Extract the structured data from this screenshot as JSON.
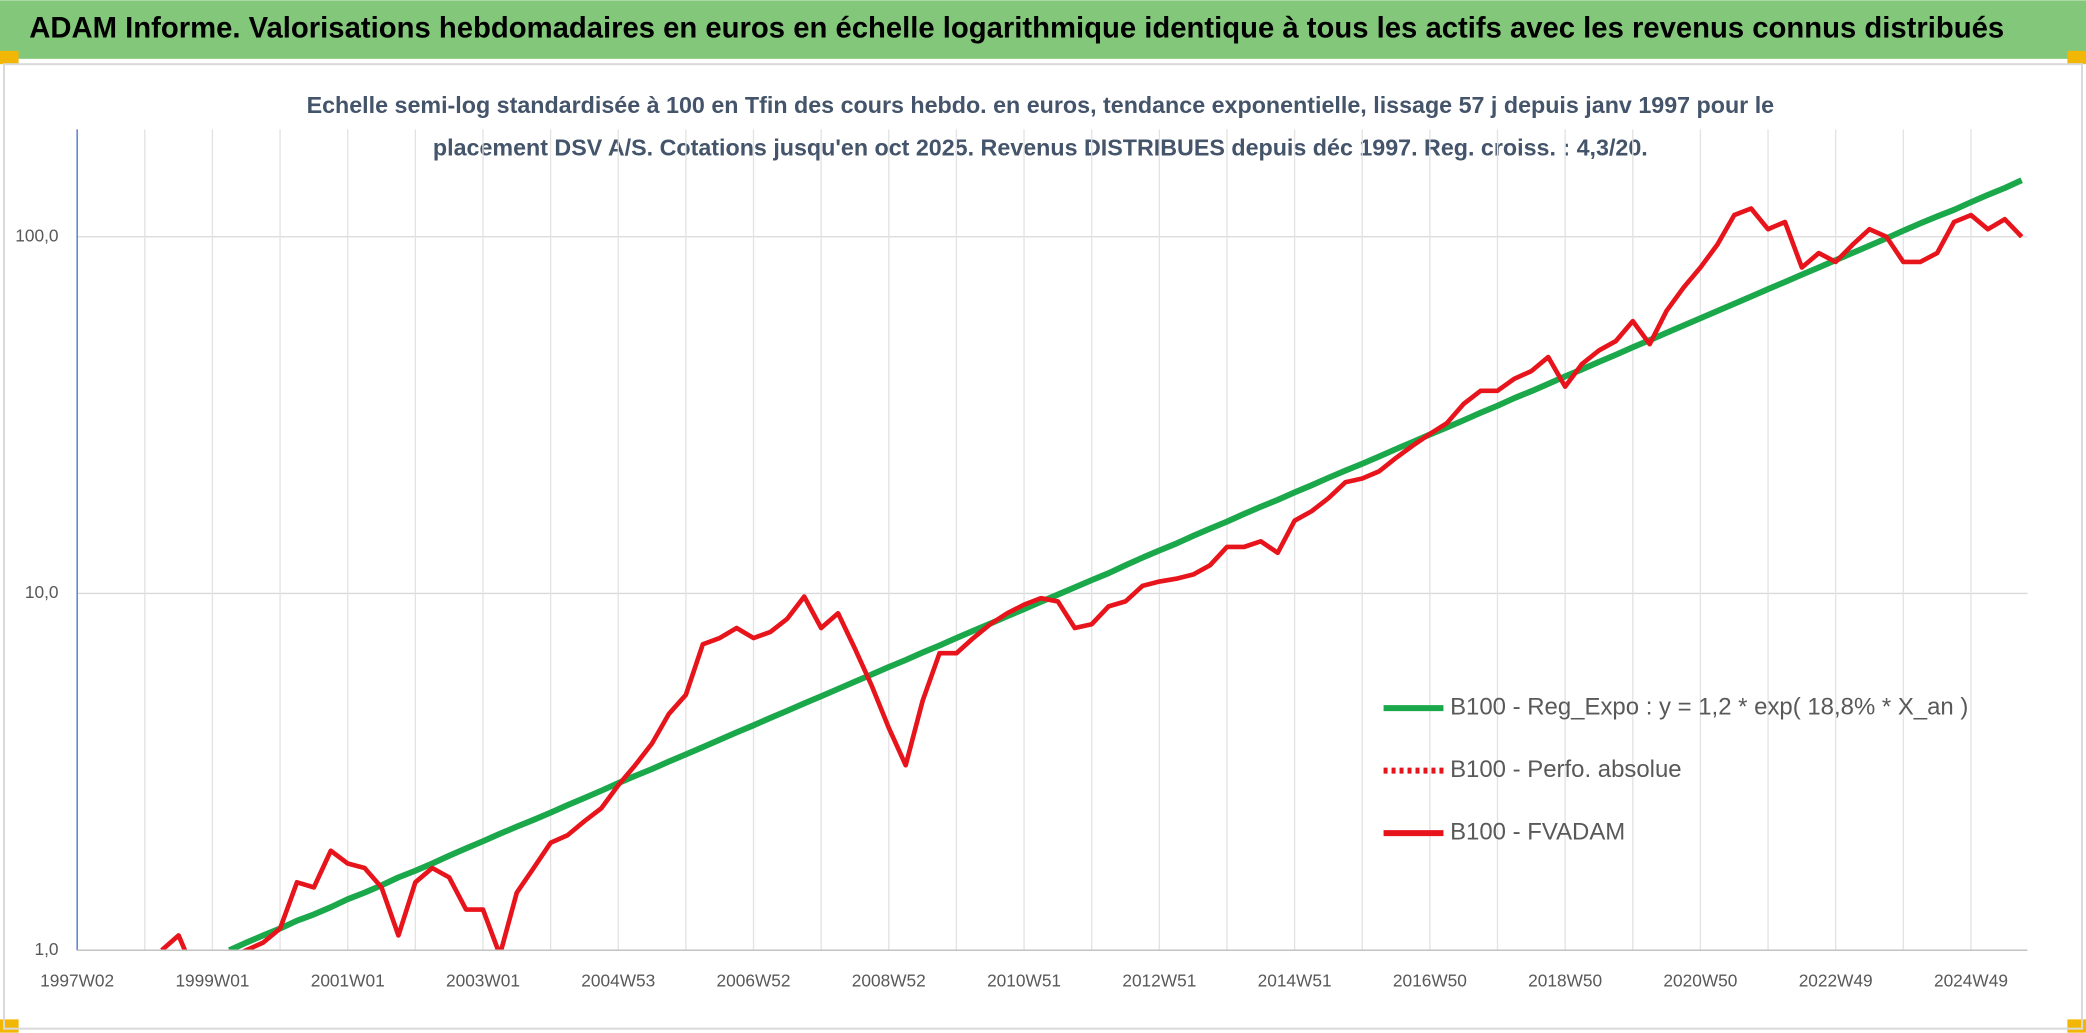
{
  "header": {
    "title": "ADAM Informe. Valorisations hebdomadaires en euros en échelle logarithmique identique à tous les actifs avec les revenus connus distribués"
  },
  "chart_data": {
    "type": "line",
    "subtitle": [
      "Echelle semi-log standardisée à 100 en Tfin des cours hebdo. en euros, tendance exponentielle, lissage 57 j depuis janv 1997 pour le",
      "placement DSV A/S. Cotations jusqu'en oct 2025. Revenus DISTRIBUES depuis déc 1997. Reg. croiss. : 4,3/20."
    ],
    "log_scale": true,
    "grid": true,
    "ylim": [
      1,
      200
    ],
    "yticks": [
      {
        "value": 1,
        "label": "1,0"
      },
      {
        "value": 10,
        "label": "10,0"
      },
      {
        "value": 100,
        "label": "100,0"
      }
    ],
    "categories": [
      "1997W02",
      null,
      null,
      null,
      null,
      null,
      null,
      null,
      "1999W01",
      null,
      null,
      null,
      null,
      null,
      null,
      null,
      "2001W01",
      null,
      null,
      null,
      null,
      null,
      null,
      null,
      "2003W01",
      null,
      null,
      null,
      null,
      null,
      null,
      null,
      "2004W53",
      null,
      null,
      null,
      null,
      null,
      null,
      null,
      "2006W52",
      null,
      null,
      null,
      null,
      null,
      null,
      null,
      "2008W52",
      null,
      null,
      null,
      null,
      null,
      null,
      null,
      "2010W51",
      null,
      null,
      null,
      null,
      null,
      null,
      null,
      "2012W51",
      null,
      null,
      null,
      null,
      null,
      null,
      null,
      "2014W51",
      null,
      null,
      null,
      null,
      null,
      null,
      null,
      "2016W50",
      null,
      null,
      null,
      null,
      null,
      null,
      null,
      "2018W50",
      null,
      null,
      null,
      null,
      null,
      null,
      null,
      "2020W50",
      null,
      null,
      null,
      null,
      null,
      null,
      null,
      "2022W49",
      null,
      null,
      null,
      null,
      null,
      null,
      null,
      "2024W49",
      null,
      null,
      null
    ],
    "series": [
      {
        "name": "B100 - Reg_Expo : y = 1,2 * exp( 18,8% *  X_an )",
        "color": "#1aa84a",
        "style": "solid",
        "values": [
          null,
          null,
          null,
          null,
          null,
          null,
          null,
          null,
          null,
          1.0,
          1.05,
          1.1,
          1.15,
          1.21,
          1.26,
          1.32,
          1.39,
          1.45,
          1.52,
          1.6,
          1.67,
          1.75,
          1.84,
          1.93,
          2.02,
          2.12,
          2.22,
          2.32,
          2.43,
          2.55,
          2.67,
          2.8,
          2.94,
          3.08,
          3.22,
          3.38,
          3.54,
          3.71,
          3.89,
          4.08,
          4.27,
          4.48,
          4.69,
          4.92,
          5.15,
          5.4,
          5.66,
          5.93,
          6.22,
          6.51,
          6.83,
          7.15,
          7.5,
          7.86,
          8.23,
          8.63,
          9.04,
          9.48,
          9.93,
          10.4,
          10.9,
          11.4,
          12.0,
          12.6,
          13.2,
          13.8,
          14.5,
          15.2,
          15.9,
          16.7,
          17.5,
          18.3,
          19.2,
          20.1,
          21.1,
          22.1,
          23.1,
          24.2,
          25.4,
          26.6,
          27.9,
          29.2,
          30.6,
          32.1,
          33.6,
          35.3,
          36.9,
          38.7,
          40.6,
          42.5,
          44.6,
          46.7,
          49.0,
          51.3,
          53.8,
          56.4,
          59.1,
          61.9,
          64.9,
          68.0,
          71.3,
          74.7,
          78.3,
          82.0,
          86.0,
          90.1,
          94.4,
          99.0,
          104,
          109,
          114,
          119,
          125,
          131,
          137,
          144
        ]
      },
      {
        "name": "B100 - Perfo. absolue",
        "color": "#e8141b",
        "style": "dotted",
        "values": [
          null,
          null,
          null,
          null,
          null,
          null,
          null,
          null,
          null,
          null,
          null,
          null,
          null,
          null,
          null,
          null,
          null,
          null,
          null,
          null,
          null,
          null,
          null,
          null,
          null,
          null,
          null,
          null,
          null,
          null,
          null,
          null,
          null,
          null,
          null,
          null,
          null,
          null,
          null,
          null,
          null,
          null,
          null,
          null,
          null,
          null,
          null,
          null,
          null,
          null,
          null,
          null,
          null,
          null,
          null,
          null,
          null,
          null,
          null,
          null,
          null,
          null,
          null,
          null,
          null,
          null,
          null,
          null,
          null,
          null,
          null,
          null,
          null,
          null,
          null,
          null,
          null,
          null,
          null,
          null,
          null,
          null,
          null,
          null,
          null,
          null,
          null,
          null,
          null,
          null,
          null,
          null,
          null,
          null,
          null,
          null,
          null,
          null,
          null,
          null,
          null,
          null,
          null,
          null,
          null,
          null,
          null,
          null,
          null,
          null,
          null,
          null,
          null,
          null,
          null,
          null
        ]
      },
      {
        "name": "B100 - FVADAM",
        "color": "#e8141b",
        "style": "solid",
        "values": [
          null,
          null,
          null,
          null,
          null,
          1.0,
          1.1,
          0.85,
          0.9,
          0.95,
          1.0,
          1.05,
          1.15,
          1.55,
          1.5,
          1.9,
          1.75,
          1.7,
          1.5,
          1.1,
          1.55,
          1.7,
          1.6,
          1.3,
          1.3,
          0.97,
          1.45,
          1.7,
          2.0,
          2.1,
          2.3,
          2.5,
          2.9,
          3.3,
          3.8,
          4.6,
          5.2,
          7.2,
          7.5,
          8.0,
          7.5,
          7.8,
          8.5,
          9.8,
          8.0,
          8.8,
          7.0,
          5.5,
          4.2,
          3.3,
          5.0,
          6.8,
          6.8,
          7.5,
          8.2,
          8.8,
          9.3,
          9.7,
          9.5,
          8.0,
          8.2,
          9.2,
          9.5,
          10.5,
          10.8,
          11.0,
          11.3,
          12.0,
          13.5,
          13.5,
          14.0,
          13.0,
          16.0,
          17.0,
          18.5,
          20.5,
          21.0,
          22.0,
          24.0,
          26.0,
          28.0,
          30.0,
          34.0,
          37.0,
          37.0,
          40,
          42,
          46,
          38,
          44,
          48,
          51,
          58,
          50,
          62,
          72,
          82,
          95,
          115,
          120,
          105,
          110,
          82,
          90,
          85,
          95,
          105,
          100,
          85,
          85,
          90,
          110,
          115,
          105,
          112,
          100
        ]
      }
    ]
  }
}
